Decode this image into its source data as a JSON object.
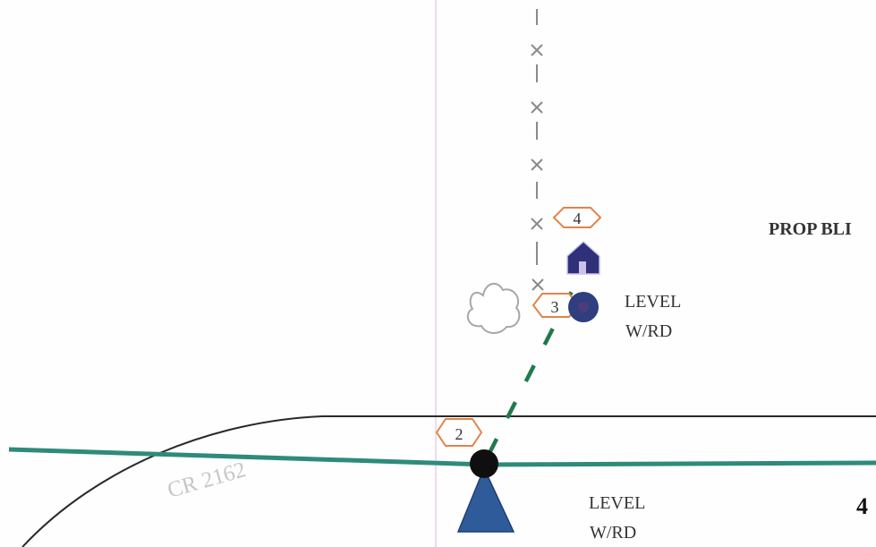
{
  "labels": {
    "prop": "PROP BLI",
    "level_upper_1": "LEVEL",
    "level_upper_2": "W/RD",
    "level_lower_1": "LEVEL",
    "level_lower_2": "W/RD",
    "road": "CR 2162",
    "edge_number": "4"
  },
  "markers": {
    "m2": "2",
    "m3": "3",
    "m4": "4"
  },
  "colors": {
    "road_line": "#2e8b7a",
    "dashed_line": "#1f7a4c",
    "hex_stroke": "#e0854a",
    "navy_marker": "#2f3e7e",
    "fence": "#888888",
    "guide_line": "#e7c3e8"
  },
  "icons": [
    "tree-icon",
    "house-icon",
    "fence-line"
  ]
}
